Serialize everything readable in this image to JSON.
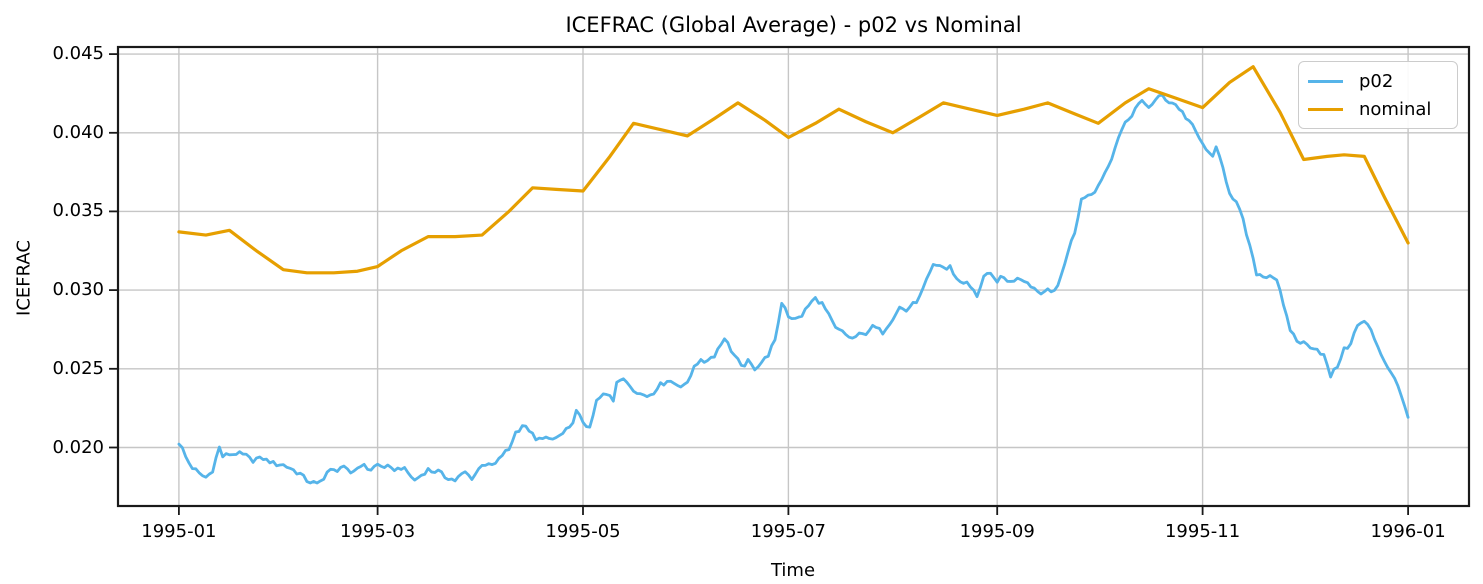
{
  "figure": {
    "title": "ICEFRAC (Global Average) - p02 vs Nominal",
    "xlabel": "Time",
    "ylabel": "ICEFRAC"
  },
  "colors": {
    "background": "#ffffff",
    "grid": "#c6c6c6",
    "spine": "#1a1a1a",
    "text": "#000000",
    "p02": "#56b4e9",
    "nominal": "#e69f00",
    "legend_border": "#cccccc"
  },
  "chart_data": {
    "type": "line",
    "title": "ICEFRAC (Global Average) - p02 vs Nominal",
    "xlabel": "Time",
    "ylabel": "ICEFRAC",
    "grid": true,
    "legend_position": "upper right",
    "x_axis": {
      "unit": "days since 1995-01-01",
      "tick_labels": [
        "1995-01",
        "1995-03",
        "1995-05",
        "1995-07",
        "1995-09",
        "1995-11",
        "1996-01"
      ],
      "tick_days": [
        0,
        59,
        120,
        181,
        243,
        304,
        365
      ],
      "xlim_days": [
        -18.1,
        383.1
      ]
    },
    "y_axis": {
      "tick_labels": [
        "0.020",
        "0.025",
        "0.030",
        "0.035",
        "0.040",
        "0.045"
      ],
      "tick_values": [
        0.02,
        0.025,
        0.03,
        0.035,
        0.04,
        0.045
      ],
      "ylim": [
        0.01628,
        0.04545
      ]
    },
    "series": [
      {
        "name": "p02",
        "color": "#56b4e9",
        "linewidth": 2.8,
        "style": "noisy-daily",
        "noise_amplitude": 0.00018,
        "anchors": [
          [
            0,
            0.0203
          ],
          [
            1,
            0.0199
          ],
          [
            2,
            0.0194
          ],
          [
            4,
            0.0187
          ],
          [
            6,
            0.0183
          ],
          [
            8,
            0.0181
          ],
          [
            10,
            0.0186
          ],
          [
            12,
            0.02
          ],
          [
            13,
            0.0194
          ],
          [
            15,
            0.0196
          ],
          [
            17,
            0.0196
          ],
          [
            20,
            0.0194
          ],
          [
            22,
            0.0192
          ],
          [
            25,
            0.0193
          ],
          [
            28,
            0.019
          ],
          [
            31,
            0.0189
          ],
          [
            34,
            0.0186
          ],
          [
            37,
            0.0181
          ],
          [
            39,
            0.0178
          ],
          [
            41,
            0.0176
          ],
          [
            44,
            0.0184
          ],
          [
            48,
            0.0187
          ],
          [
            51,
            0.0184
          ],
          [
            54,
            0.0189
          ],
          [
            57,
            0.0186
          ],
          [
            59,
            0.0189
          ],
          [
            63,
            0.0186
          ],
          [
            66,
            0.0187
          ],
          [
            68,
            0.0184
          ],
          [
            70,
            0.0179
          ],
          [
            72,
            0.0183
          ],
          [
            74,
            0.0186
          ],
          [
            77,
            0.0184
          ],
          [
            80,
            0.0181
          ],
          [
            82,
            0.0179
          ],
          [
            85,
            0.0184
          ],
          [
            87,
            0.0181
          ],
          [
            88,
            0.0183
          ],
          [
            90,
            0.019
          ],
          [
            92,
            0.0188
          ],
          [
            94,
            0.0189
          ],
          [
            96,
            0.0195
          ],
          [
            98,
            0.0199
          ],
          [
            100,
            0.021
          ],
          [
            102,
            0.0214
          ],
          [
            104,
            0.0211
          ],
          [
            106,
            0.0204
          ],
          [
            108,
            0.0207
          ],
          [
            110,
            0.0204
          ],
          [
            112,
            0.0206
          ],
          [
            114,
            0.0208
          ],
          [
            116,
            0.0212
          ],
          [
            118,
            0.0222
          ],
          [
            120,
            0.0217
          ],
          [
            122,
            0.0211
          ],
          [
            124,
            0.0229
          ],
          [
            126,
            0.0233
          ],
          [
            128,
            0.0234
          ],
          [
            129,
            0.0231
          ],
          [
            130,
            0.0243
          ],
          [
            133,
            0.0242
          ],
          [
            135,
            0.0238
          ],
          [
            137,
            0.0234
          ],
          [
            139,
            0.0233
          ],
          [
            141,
            0.0236
          ],
          [
            143,
            0.024
          ],
          [
            145,
            0.0243
          ],
          [
            147,
            0.0241
          ],
          [
            149,
            0.024
          ],
          [
            151,
            0.024
          ],
          [
            152,
            0.0246
          ],
          [
            153,
            0.0253
          ],
          [
            156,
            0.0255
          ],
          [
            159,
            0.0259
          ],
          [
            162,
            0.027
          ],
          [
            163,
            0.0266
          ],
          [
            165,
            0.0258
          ],
          [
            167,
            0.0251
          ],
          [
            169,
            0.0254
          ],
          [
            171,
            0.0251
          ],
          [
            173,
            0.0254
          ],
          [
            175,
            0.0259
          ],
          [
            177,
            0.0267
          ],
          [
            178,
            0.028
          ],
          [
            179,
            0.0292
          ],
          [
            180,
            0.029
          ],
          [
            181,
            0.0284
          ],
          [
            183,
            0.0281
          ],
          [
            185,
            0.0284
          ],
          [
            187,
            0.029
          ],
          [
            189,
            0.0295
          ],
          [
            191,
            0.0291
          ],
          [
            193,
            0.0283
          ],
          [
            195,
            0.0275
          ],
          [
            197,
            0.0273
          ],
          [
            200,
            0.0269
          ],
          [
            203,
            0.0272
          ],
          [
            206,
            0.0276
          ],
          [
            209,
            0.0274
          ],
          [
            212,
            0.0283
          ],
          [
            214,
            0.0289
          ],
          [
            216,
            0.0287
          ],
          [
            218,
            0.0291
          ],
          [
            220,
            0.0295
          ],
          [
            222,
            0.0305
          ],
          [
            224,
            0.0315
          ],
          [
            226,
            0.0316
          ],
          [
            228,
            0.0313
          ],
          [
            229,
            0.0315
          ],
          [
            231,
            0.0307
          ],
          [
            234,
            0.0304
          ],
          [
            237,
            0.0297
          ],
          [
            239,
            0.0308
          ],
          [
            241,
            0.0309
          ],
          [
            243,
            0.0306
          ],
          [
            245,
            0.0308
          ],
          [
            247,
            0.0305
          ],
          [
            249,
            0.0309
          ],
          [
            251,
            0.0307
          ],
          [
            253,
            0.0303
          ],
          [
            255,
            0.03
          ],
          [
            257,
            0.0299
          ],
          [
            259,
            0.0299
          ],
          [
            261,
            0.0303
          ],
          [
            262,
            0.0309
          ],
          [
            264,
            0.0325
          ],
          [
            266,
            0.0336
          ],
          [
            268,
            0.0358
          ],
          [
            270,
            0.0361
          ],
          [
            272,
            0.0364
          ],
          [
            274,
            0.0371
          ],
          [
            276,
            0.0378
          ],
          [
            278,
            0.0392
          ],
          [
            280,
            0.0401
          ],
          [
            282,
            0.0409
          ],
          [
            284,
            0.0415
          ],
          [
            286,
            0.0419
          ],
          [
            288,
            0.0417
          ],
          [
            290,
            0.042
          ],
          [
            292,
            0.0424
          ],
          [
            294,
            0.042
          ],
          [
            296,
            0.0418
          ],
          [
            298,
            0.0413
          ],
          [
            300,
            0.0407
          ],
          [
            302,
            0.04
          ],
          [
            304,
            0.0393
          ],
          [
            305,
            0.0388
          ],
          [
            307,
            0.0386
          ],
          [
            308,
            0.0389
          ],
          [
            310,
            0.0378
          ],
          [
            312,
            0.0363
          ],
          [
            314,
            0.0355
          ],
          [
            316,
            0.0344
          ],
          [
            318,
            0.0327
          ],
          [
            320,
            0.0311
          ],
          [
            322,
            0.0309
          ],
          [
            324,
            0.031
          ],
          [
            326,
            0.0307
          ],
          [
            328,
            0.0289
          ],
          [
            330,
            0.0275
          ],
          [
            332,
            0.0268
          ],
          [
            334,
            0.0266
          ],
          [
            336,
            0.0265
          ],
          [
            338,
            0.0263
          ],
          [
            340,
            0.0258
          ],
          [
            342,
            0.0245
          ],
          [
            344,
            0.0252
          ],
          [
            346,
            0.0262
          ],
          [
            348,
            0.0267
          ],
          [
            350,
            0.0277
          ],
          [
            352,
            0.028
          ],
          [
            354,
            0.0274
          ],
          [
            356,
            0.0265
          ],
          [
            358,
            0.0255
          ],
          [
            360,
            0.0248
          ],
          [
            362,
            0.0238
          ],
          [
            364,
            0.0228
          ],
          [
            365,
            0.0219
          ]
        ]
      },
      {
        "name": "nominal",
        "color": "#e69f00",
        "linewidth": 3.2,
        "style": "piecewise-linear",
        "points": [
          [
            0,
            0.0337
          ],
          [
            8,
            0.0335
          ],
          [
            15,
            0.0338
          ],
          [
            23,
            0.0325
          ],
          [
            31,
            0.0313
          ],
          [
            38,
            0.0311
          ],
          [
            46,
            0.0311
          ],
          [
            53,
            0.0312
          ],
          [
            59,
            0.0315
          ],
          [
            66,
            0.0325
          ],
          [
            74,
            0.0334
          ],
          [
            82,
            0.0334
          ],
          [
            90,
            0.0335
          ],
          [
            98,
            0.035
          ],
          [
            105,
            0.0365
          ],
          [
            112,
            0.0364
          ],
          [
            120,
            0.0363
          ],
          [
            128,
            0.0385
          ],
          [
            135,
            0.0406
          ],
          [
            143,
            0.0402
          ],
          [
            151,
            0.0398
          ],
          [
            159,
            0.0409
          ],
          [
            166,
            0.0419
          ],
          [
            174,
            0.0408
          ],
          [
            181,
            0.0397
          ],
          [
            189,
            0.0406
          ],
          [
            196,
            0.0415
          ],
          [
            204,
            0.0407
          ],
          [
            212,
            0.04
          ],
          [
            220,
            0.041
          ],
          [
            227,
            0.0419
          ],
          [
            235,
            0.0415
          ],
          [
            243,
            0.0411
          ],
          [
            251,
            0.0415
          ],
          [
            258,
            0.0419
          ],
          [
            266,
            0.0412
          ],
          [
            273,
            0.0406
          ],
          [
            281,
            0.0419
          ],
          [
            288,
            0.0428
          ],
          [
            296,
            0.0422
          ],
          [
            304,
            0.0416
          ],
          [
            312,
            0.0432
          ],
          [
            319,
            0.0442
          ],
          [
            327,
            0.0413
          ],
          [
            334,
            0.0383
          ],
          [
            341,
            0.0385
          ],
          [
            346,
            0.0386
          ],
          [
            352,
            0.0385
          ],
          [
            358,
            0.0359
          ],
          [
            365,
            0.033
          ]
        ]
      }
    ]
  },
  "legend": {
    "items": [
      {
        "label": "p02",
        "color": "#56b4e9"
      },
      {
        "label": "nominal",
        "color": "#e69f00"
      }
    ]
  }
}
